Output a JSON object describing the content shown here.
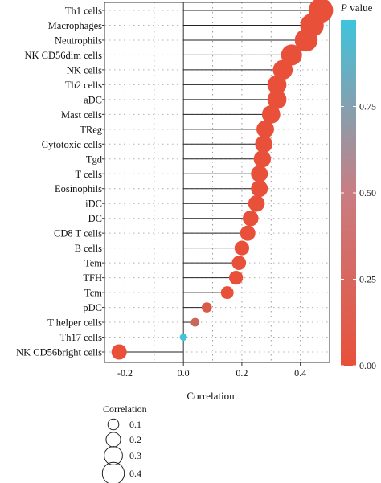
{
  "chart_data": {
    "type": "scatter",
    "chart_style": "lollipop",
    "xlabel": "Correlation",
    "xlim": [
      -0.27,
      0.5
    ],
    "x_ticks": [
      -0.2,
      0.0,
      0.2,
      0.4
    ],
    "x_tick_labels": [
      "-0.2",
      "0.0",
      "0.2",
      "0.4"
    ],
    "grid": "dotted",
    "categories": [
      "Th1 cells",
      "Macrophages",
      "Neutrophils",
      "NK CD56dim cells",
      "NK cells",
      "Th2 cells",
      "aDC",
      "Mast cells",
      "TReg",
      "Cytotoxic cells",
      "Tgd",
      "T cells",
      "Eosinophils",
      "iDC",
      "DC",
      "CD8 T cells",
      "B cells",
      "Tem",
      "TFH",
      "Tcm",
      "pDC",
      "T helper cells",
      "Th17 cells",
      "NK CD56bright cells"
    ],
    "values": [
      0.47,
      0.44,
      0.42,
      0.37,
      0.34,
      0.32,
      0.32,
      0.3,
      0.28,
      0.275,
      0.27,
      0.26,
      0.26,
      0.25,
      0.23,
      0.22,
      0.2,
      0.19,
      0.18,
      0.15,
      0.08,
      0.04,
      0.0,
      -0.22
    ],
    "p_values": [
      0.0,
      0.0,
      0.0,
      0.0,
      0.0,
      0.0,
      0.0,
      0.0,
      0.0,
      0.0,
      0.0,
      0.0,
      0.0,
      0.0,
      0.0,
      0.0,
      0.0,
      0.0,
      0.0,
      0.002,
      0.09,
      0.2,
      1.0,
      0.0
    ],
    "color_legend": {
      "title_italic": "P",
      "title_rest": " value",
      "range": [
        0.0,
        1.0
      ],
      "ticks": [
        0.0,
        0.25,
        0.5,
        0.75
      ],
      "tick_labels": [
        "0.00",
        "0.25",
        "0.50",
        "0.75"
      ],
      "color_low": "#e8503a",
      "color_high": "#3ec4dc"
    },
    "size_legend": {
      "title": "Correlation",
      "values": [
        0.1,
        0.2,
        0.3,
        0.4
      ],
      "labels": [
        "0.1",
        "0.2",
        "0.3",
        "0.4"
      ]
    }
  }
}
